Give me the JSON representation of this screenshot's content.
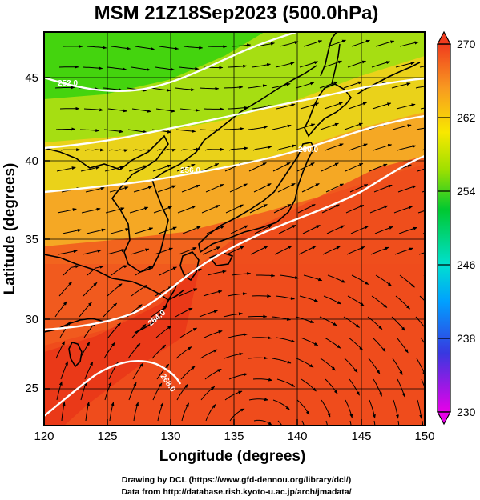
{
  "title": "MSM 21Z18Sep2023 (500.0hPa)",
  "x_axis": {
    "label": "Longitude (degrees)",
    "range": [
      120,
      150
    ],
    "ticks": [
      "120",
      "125",
      "130",
      "135",
      "140",
      "145",
      "150"
    ]
  },
  "y_axis": {
    "label": "Latitude  (degrees)",
    "range": [
      22.4,
      48
    ],
    "ticks": [
      "25",
      "30",
      "35",
      "40",
      "45"
    ]
  },
  "colorbar": {
    "min": 230,
    "max": 270,
    "ticks": [
      "270",
      "262",
      "254",
      "246",
      "238",
      "230"
    ],
    "extend": "both"
  },
  "contours": {
    "levels": [
      252,
      256,
      260,
      264,
      268
    ],
    "labels": [
      "252.0",
      "256.0",
      "260.0",
      "264.0",
      "268.0"
    ],
    "color": "#ffffff"
  },
  "credits": {
    "line1": "Drawing by DCL (https://www.gfd-dennou.org/library/dcl/)",
    "line2": "Data from http://database.rish.kyoto-u.ac.jp/arch/jmadata/"
  }
}
